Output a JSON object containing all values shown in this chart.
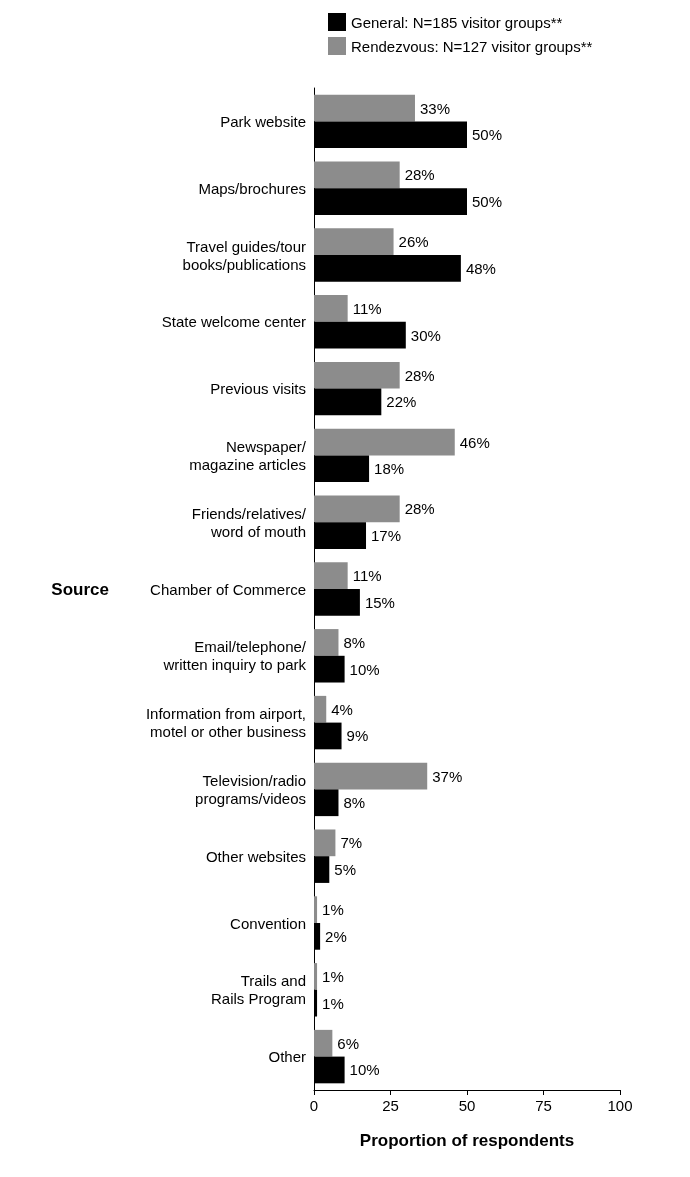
{
  "chart_data": {
    "type": "bar",
    "orientation": "horizontal",
    "xlabel": "Proportion of respondents",
    "ylabel": "Source",
    "categories": [
      "Park website",
      "Maps/brochures",
      "Travel guides/tour\nbooks/publications",
      "State welcome center",
      "Previous visits",
      "Newspaper/\nmagazine articles",
      "Friends/relatives/\nword of mouth",
      "Chamber of Commerce",
      "Email/telephone/\nwritten inquiry to park",
      "Information from airport,\nmotel or other business",
      "Television/radio\nprograms/videos",
      "Other websites",
      "Convention",
      "Trails and\nRails Program",
      "Other"
    ],
    "series": [
      {
        "name": "General: N=185 visitor groups**",
        "color": "#000000",
        "values": [
          50,
          50,
          48,
          30,
          22,
          18,
          17,
          15,
          10,
          9,
          8,
          5,
          2,
          1,
          10
        ],
        "value_labels": [
          "50%",
          "50%",
          "48%",
          "30%",
          "22%",
          "18%",
          "17%",
          "15%",
          "10%",
          "9%",
          "8%",
          "5%",
          "2%",
          "1%",
          "10%"
        ]
      },
      {
        "name": "Rendezvous: N=127 visitor groups**",
        "color": "#8c8c8c",
        "values": [
          33,
          28,
          26,
          11,
          28,
          46,
          28,
          11,
          8,
          4,
          37,
          7,
          1,
          1,
          6
        ],
        "value_labels": [
          "33%",
          "28%",
          "26%",
          "11%",
          "28%",
          "46%",
          "28%",
          "11%",
          "8%",
          "4%",
          "37%",
          "7%",
          "1%",
          "1%",
          "6%"
        ]
      }
    ],
    "xlim": [
      0,
      100
    ],
    "xticks": [
      0,
      25,
      50,
      75,
      100
    ],
    "grid": false,
    "legend": "top"
  }
}
